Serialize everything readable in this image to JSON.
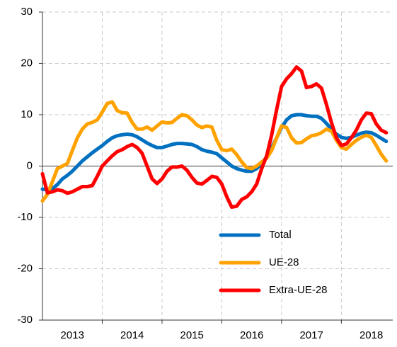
{
  "chart_data": {
    "type": "line",
    "categories": [
      null,
      null,
      null,
      null,
      null,
      null,
      "2013",
      null,
      null,
      null,
      null,
      null,
      null,
      null,
      null,
      null,
      null,
      null,
      "2014",
      null,
      null,
      null,
      null,
      null,
      null,
      null,
      null,
      null,
      null,
      null,
      "2015",
      null,
      null,
      null,
      null,
      null,
      null,
      null,
      null,
      null,
      null,
      null,
      "2016",
      null,
      null,
      null,
      null,
      null,
      null,
      null,
      null,
      null,
      null,
      null,
      "2017",
      null,
      null,
      null,
      null,
      null,
      null,
      null,
      null,
      null,
      null,
      null,
      "2018",
      null,
      null,
      null
    ],
    "series": [
      {
        "name": "Total",
        "color": "#0070c0",
        "values": [
          -4.5,
          -4.6,
          -4.4,
          -3.6,
          -2.5,
          -1.8,
          -1,
          0,
          1,
          1.8,
          2.6,
          3.3,
          4,
          4.8,
          5.5,
          5.9,
          6.1,
          6.2,
          6.1,
          5.7,
          5.1,
          4.5,
          4,
          3.6,
          3.6,
          3.9,
          4.2,
          4.4,
          4.4,
          4.3,
          4.2,
          3.8,
          3.2,
          2.9,
          2.7,
          2.4,
          1.6,
          0.8,
          0,
          -0.5,
          -0.8,
          -1,
          -1,
          -0.5,
          0.5,
          1.8,
          3.5,
          5.5,
          7.5,
          9,
          9.8,
          10,
          10,
          9.8,
          9.7,
          9.7,
          9.3,
          8.3,
          7.2,
          6.2,
          5.6,
          5.4,
          5.6,
          6,
          6.4,
          6.6,
          6.5,
          6,
          5.4,
          4.8
        ]
      },
      {
        "name": "UE-28",
        "color": "#ffa200",
        "values": [
          -6.8,
          -5.5,
          -3,
          -0.5,
          0,
          0.5,
          3,
          5.5,
          7.2,
          8.2,
          8.5,
          9,
          10.5,
          12.2,
          12.5,
          10.8,
          10.4,
          10.3,
          8.5,
          7.2,
          7.2,
          7.6,
          7,
          7.8,
          8.6,
          8.4,
          8.5,
          9.3,
          10,
          9.8,
          9,
          8,
          7.5,
          7.8,
          7.6,
          5,
          3.2,
          3,
          3.3,
          2.2,
          0.8,
          -0.3,
          -0.5,
          0,
          0.8,
          1.5,
          3,
          5.5,
          7.8,
          7.5,
          5.5,
          4.5,
          4.6,
          5.3,
          5.9,
          6.1,
          6.5,
          7.2,
          6.8,
          5,
          3.6,
          3.3,
          4.2,
          5,
          5.6,
          6,
          5.6,
          4,
          2.3,
          1
        ]
      },
      {
        "name": "Extra-UE-28",
        "color": "#ff0000",
        "values": [
          -1.5,
          -5.2,
          -5,
          -4.6,
          -4.8,
          -5.3,
          -5,
          -4.5,
          -4,
          -4,
          -3.8,
          -2,
          0,
          1,
          2,
          2.8,
          3.2,
          3.8,
          4.2,
          3.6,
          2.5,
          0,
          -2.5,
          -3.4,
          -2.5,
          -1,
          -0.2,
          -0.2,
          0,
          -0.8,
          -2.2,
          -3.3,
          -3.5,
          -2.8,
          -2,
          -2.2,
          -3.5,
          -6,
          -8,
          -7.8,
          -6.5,
          -6,
          -5,
          -3.5,
          -0.5,
          2,
          6,
          11,
          15.5,
          17,
          18,
          19.3,
          18.5,
          15.3,
          15.5,
          16,
          15.2,
          12,
          8.5,
          5.5,
          4,
          4.3,
          5.5,
          7,
          9,
          10.3,
          10.2,
          8.2,
          7,
          6.5
        ]
      }
    ],
    "ylim": [
      -30,
      30
    ],
    "yticks": [
      -30,
      -20,
      -10,
      0,
      10,
      20,
      30
    ],
    "grid": true,
    "legend": "lower right"
  }
}
